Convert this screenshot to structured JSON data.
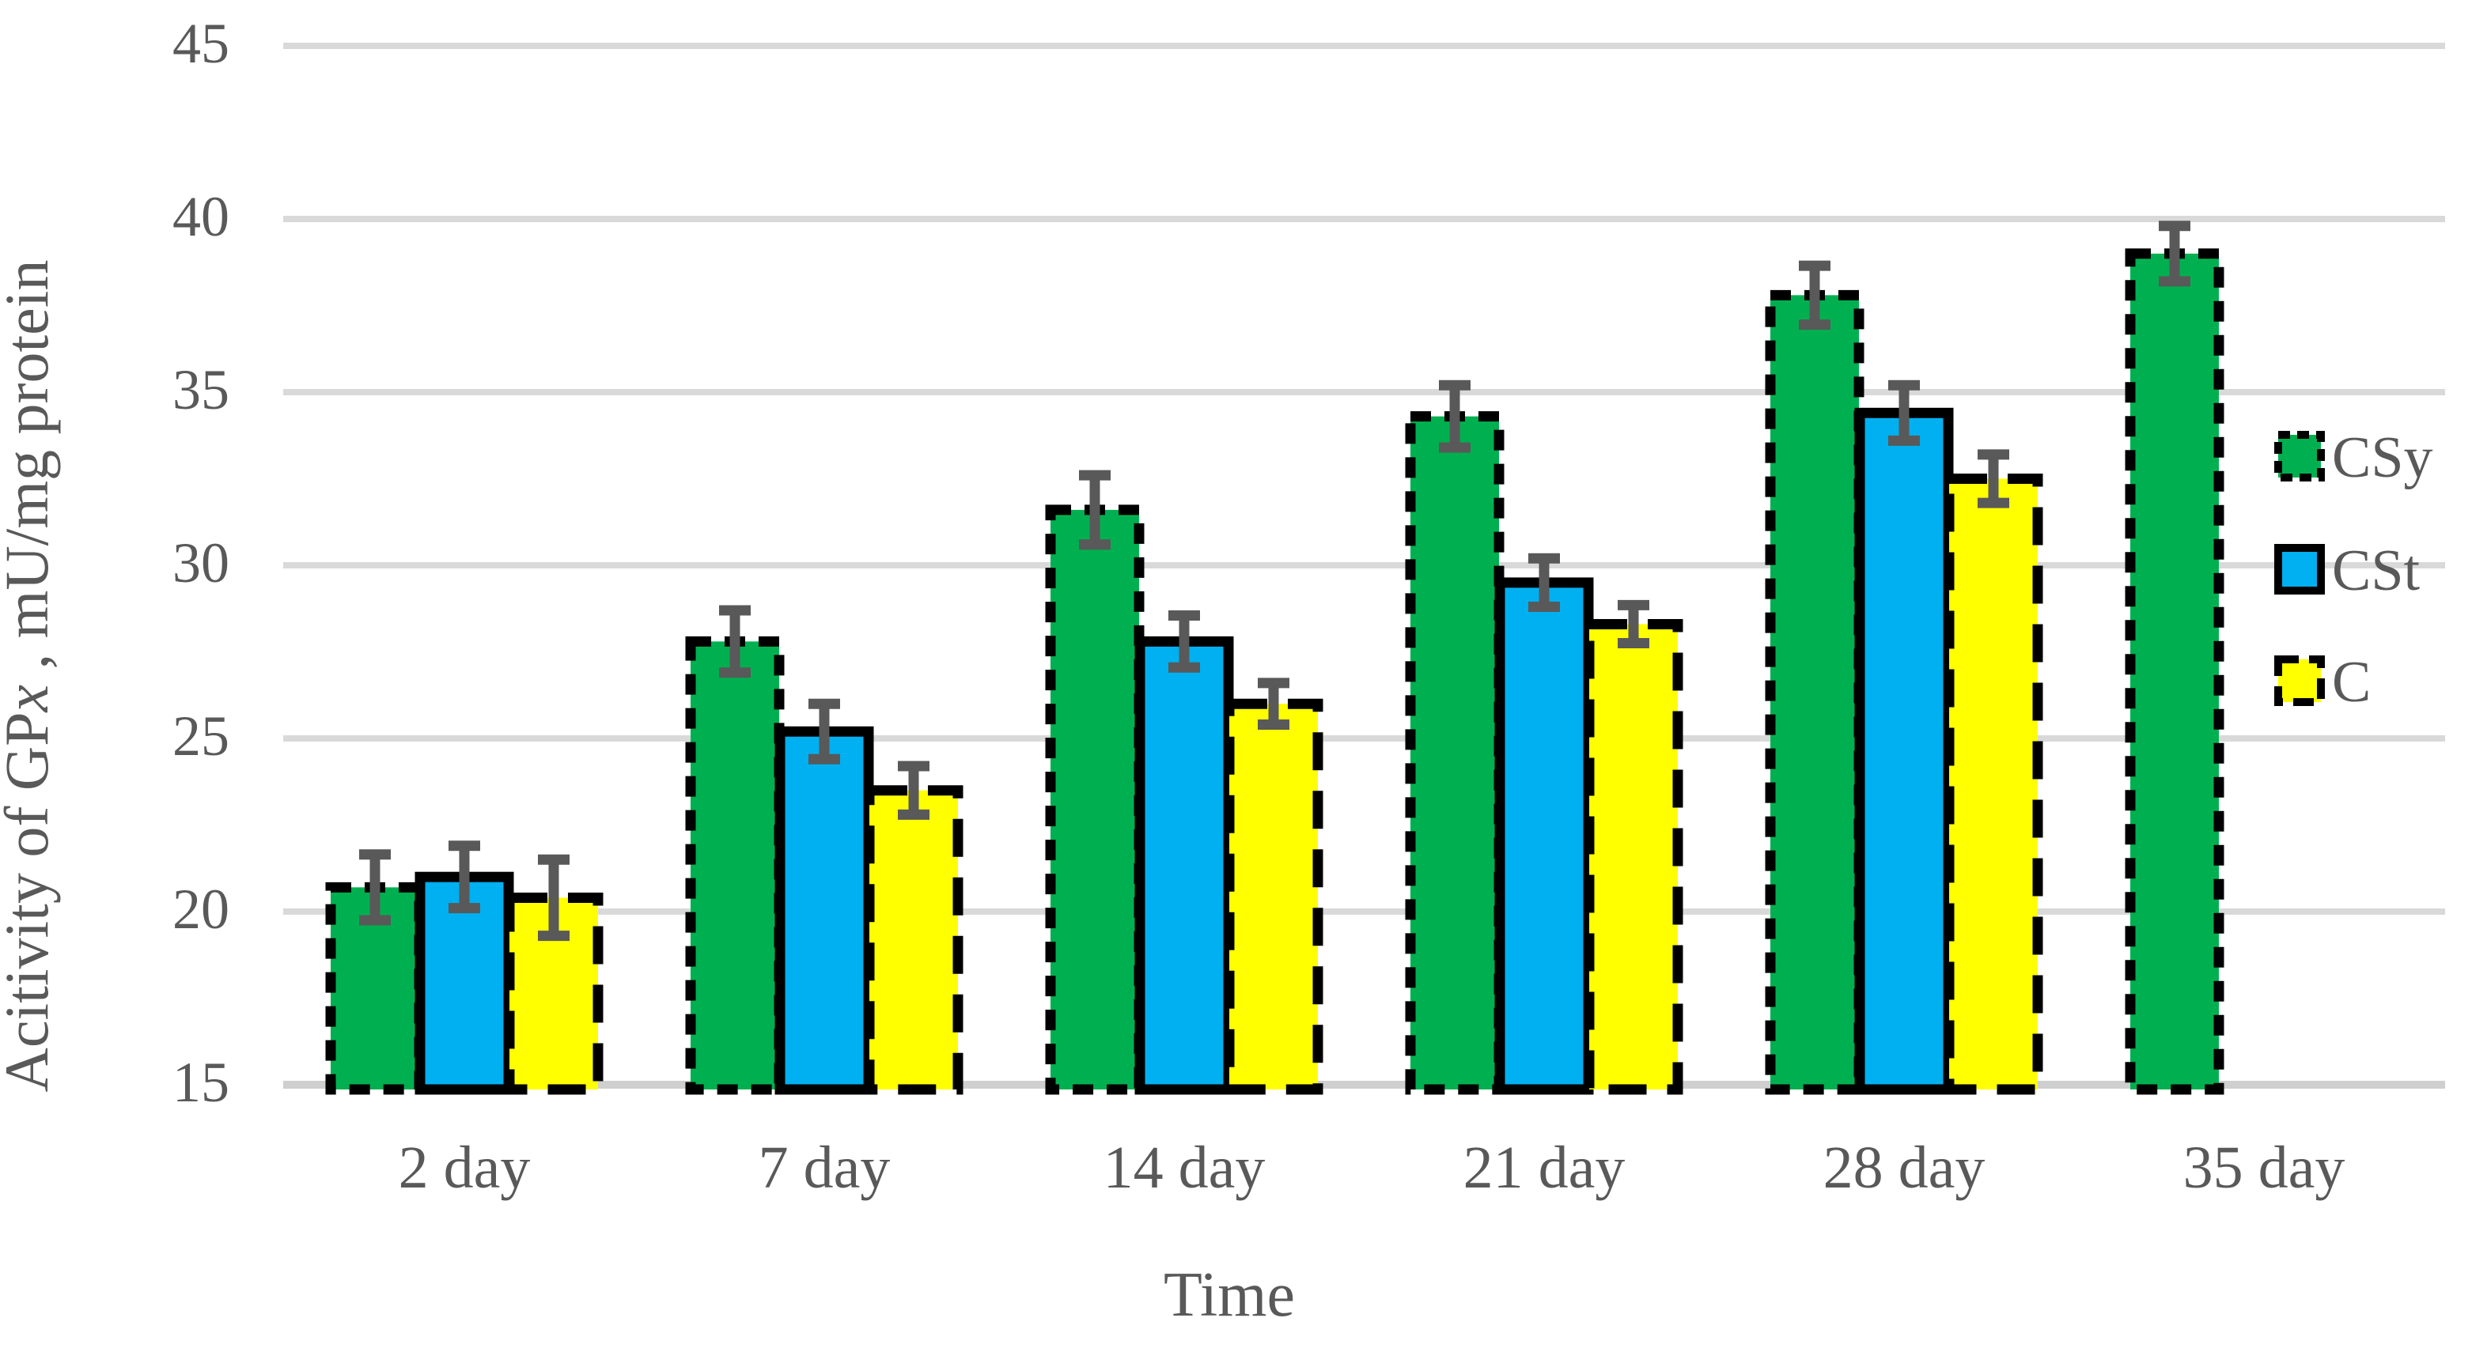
{
  "chart_data": {
    "type": "bar",
    "title": "",
    "xlabel": "Time",
    "ylabel": "Acitivity of GPx , mU/mg protein",
    "ylabel_parts": [
      {
        "text": "Acitivity of GP",
        "italic": false
      },
      {
        "text": "x",
        "italic": true
      },
      {
        "text": " , mU/mg protein",
        "italic": false
      }
    ],
    "categories": [
      "2 day",
      "7 day",
      "14 day",
      "21 day",
      "28 day",
      "35 day"
    ],
    "y_ticks": [
      15,
      20,
      25,
      30,
      35,
      40,
      45
    ],
    "ylim": [
      15,
      45
    ],
    "grid": "horizontal",
    "legend_position": "right",
    "colors": {
      "axis_text": "#595959",
      "gridline": "#d9d9d9",
      "axis_line": "#cfcfcf",
      "error_bar": "#595959",
      "bar_border": "#000000"
    },
    "series": [
      {
        "name": "CSy",
        "color": "#00B050",
        "border_style": "dashed-small",
        "values": [
          20.7,
          27.8,
          31.6,
          34.3,
          37.8,
          39.0
        ],
        "errors": [
          0.95,
          0.9,
          1.0,
          0.9,
          0.85,
          0.8
        ]
      },
      {
        "name": "CSt",
        "color": "#00B0F0",
        "border_style": "solid",
        "values": [
          21.0,
          25.2,
          27.8,
          29.5,
          34.4,
          null
        ],
        "errors": [
          0.9,
          0.8,
          0.75,
          0.7,
          0.8,
          null
        ]
      },
      {
        "name": "C",
        "color": "#FFFF00",
        "border_style": "dashed-long",
        "values": [
          20.4,
          23.5,
          26.0,
          28.3,
          32.5,
          null
        ],
        "errors": [
          1.1,
          0.7,
          0.6,
          0.55,
          0.7,
          null
        ]
      }
    ]
  }
}
